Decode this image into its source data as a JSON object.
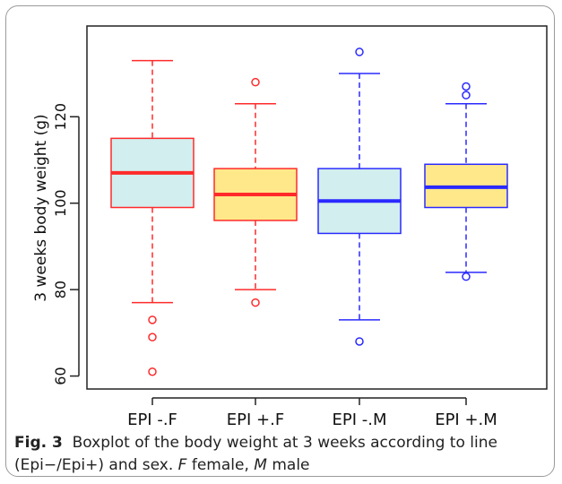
{
  "chart_data": {
    "type": "boxplot",
    "ylabel": "3 weeks body weight (g)",
    "ylim": [
      57,
      141
    ],
    "yticks": [
      60,
      80,
      100,
      120
    ],
    "grid": false,
    "categories": [
      "EPI -.F",
      "EPI +.F",
      "EPI -.M",
      "EPI +.M"
    ],
    "boxes": [
      {
        "name": "EPI -.F",
        "whisker_low": 77,
        "q1": 99,
        "median": 107,
        "q3": 115,
        "whisker_high": 133,
        "outliers": [
          73,
          69,
          61
        ],
        "fill": "#d2eeee",
        "stroke": "#ff2a2a"
      },
      {
        "name": "EPI +.F",
        "whisker_low": 80,
        "q1": 96,
        "median": 102,
        "q3": 108,
        "whisker_high": 123,
        "outliers": [
          128,
          77
        ],
        "fill": "#ffe88a",
        "stroke": "#ff2a2a"
      },
      {
        "name": "EPI -.M",
        "whisker_low": 73,
        "q1": 93,
        "median": 100.5,
        "q3": 108,
        "whisker_high": 130,
        "outliers": [
          135,
          68
        ],
        "fill": "#d2eeee",
        "stroke": "#2a2aff"
      },
      {
        "name": "EPI +.M",
        "whisker_low": 84,
        "q1": 99,
        "median": 103.7,
        "q3": 109,
        "whisker_high": 123,
        "outliers": [
          127,
          125,
          83
        ],
        "fill": "#ffe88a",
        "stroke": "#2a2aff"
      }
    ]
  },
  "caption": {
    "figure_label": "Fig. 3",
    "text_1": "Boxplot of the body weight at 3 weeks according to line (Epi−/Epi+) and sex. ",
    "female_abbr": "F",
    "female_word": " female, ",
    "male_abbr": "M",
    "male_word": " male"
  }
}
